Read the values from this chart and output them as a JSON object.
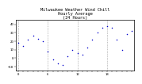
{
  "title": "Milwaukee Weather Wind Chill\nHourly Average\n(24 Hours)",
  "title_fontsize": 3.8,
  "dot_color": "#0000cc",
  "dot_size": 1.2,
  "background_color": "#ffffff",
  "plot_bg_color": "#ffffff",
  "grid_color": "#888888",
  "x_hours": [
    0,
    1,
    2,
    3,
    4,
    5,
    6,
    7,
    8,
    9,
    10,
    11,
    12,
    13,
    14,
    15,
    16,
    17,
    18,
    19,
    20,
    21,
    22,
    23
  ],
  "y_values": [
    18,
    14,
    22,
    26,
    23,
    20,
    8,
    -2,
    -6,
    -8,
    2,
    10,
    6,
    4,
    12,
    22,
    30,
    36,
    38,
    36,
    22,
    10,
    28,
    32
  ],
  "ylim_min": -15,
  "ylim_max": 45,
  "tick_label_fontsize": 2.8,
  "x_tick_step": 1,
  "vgrid_every": 6
}
